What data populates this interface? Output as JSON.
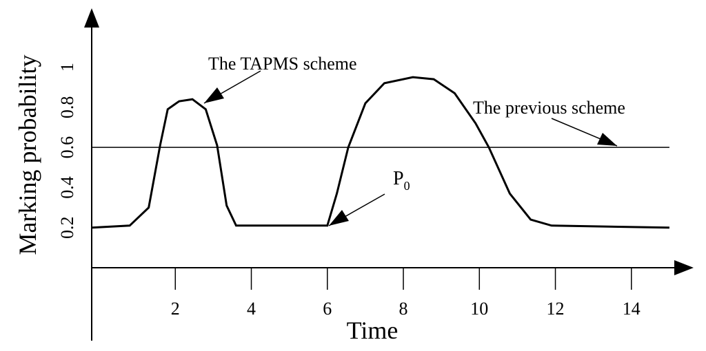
{
  "chart_data": {
    "type": "line",
    "x_label": "Time",
    "y_label": "Marking probability",
    "xlim": [
      -0.2,
      15.6
    ],
    "ylim": [
      0,
      1.28
    ],
    "xticks": [
      2,
      4,
      6,
      8,
      10,
      12,
      14
    ],
    "yticks": [
      0.2,
      0.4,
      0.6,
      0.8,
      1.0
    ],
    "series": [
      {
        "name": "The TAPMS scheme",
        "color": "#000000",
        "x": [
          -0.2,
          0.8,
          1.3,
          1.6,
          1.8,
          2.1,
          2.45,
          2.8,
          3.1,
          3.35,
          3.6,
          6.0,
          6.25,
          6.55,
          7.0,
          7.5,
          8.25,
          8.8,
          9.35,
          9.9,
          10.25,
          10.8,
          11.35,
          11.9,
          15.0
        ],
        "values": [
          0.2,
          0.21,
          0.3,
          0.61,
          0.79,
          0.83,
          0.84,
          0.79,
          0.61,
          0.31,
          0.21,
          0.21,
          0.37,
          0.6,
          0.82,
          0.92,
          0.95,
          0.94,
          0.87,
          0.72,
          0.6,
          0.37,
          0.24,
          0.21,
          0.2
        ]
      },
      {
        "name": "The previous scheme",
        "color": "#000000",
        "x": [
          -0.2,
          15.0
        ],
        "values": [
          0.6,
          0.6
        ]
      }
    ],
    "annotations": [
      {
        "text": "P",
        "subscript": "0"
      }
    ]
  }
}
